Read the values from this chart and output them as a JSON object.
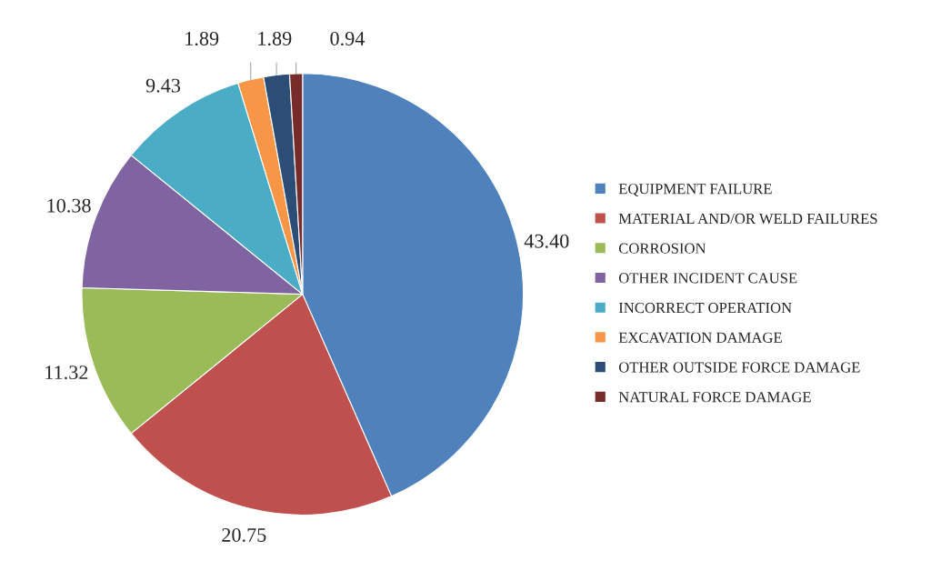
{
  "chart_data": {
    "type": "pie",
    "categories": [
      "EQUIPMENT FAILURE",
      "MATERIAL AND/OR WELD FAILURES",
      "CORROSION",
      "OTHER INCIDENT CAUSE",
      "INCORRECT OPERATION",
      "EXCAVATION DAMAGE",
      "OTHER OUTSIDE FORCE DAMAGE",
      "NATURAL FORCE DAMAGE"
    ],
    "values": [
      43.4,
      20.75,
      11.32,
      10.38,
      9.43,
      1.89,
      1.89,
      0.94
    ],
    "value_labels": [
      "43.40",
      "20.75",
      "11.32",
      "10.38",
      "9.43",
      "1.89",
      "1.89",
      "0.94"
    ],
    "colors": [
      "#4f81bd",
      "#c0504d",
      "#9bbb59",
      "#8064a2",
      "#4bacc6",
      "#f79646",
      "#2c4d75",
      "#772c2a"
    ],
    "legend": "right"
  }
}
